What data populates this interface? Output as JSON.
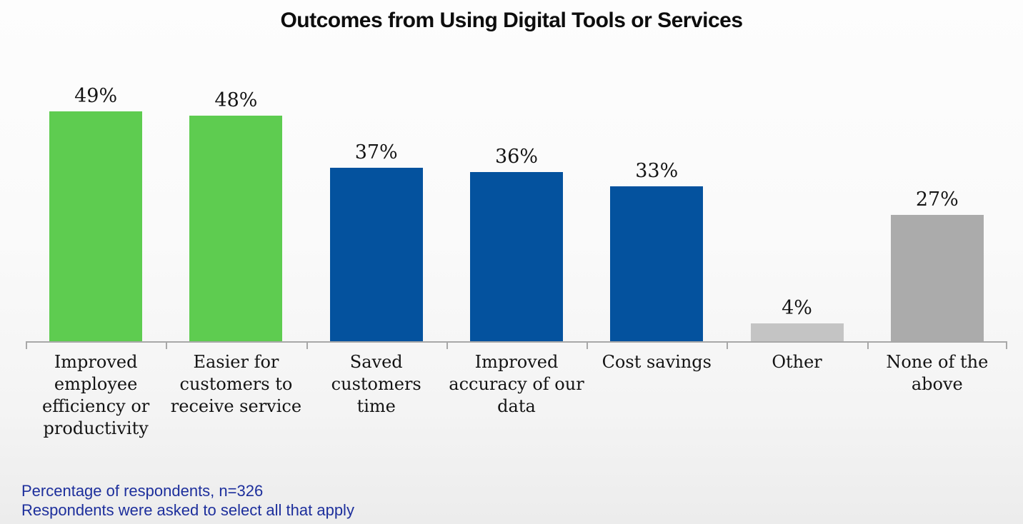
{
  "title": "Outcomes from Using Digital Tools or Services",
  "footer": {
    "line1": "Percentage of respondents, n=326",
    "line2": "Respondents were asked to select all that apply"
  },
  "colors": {
    "green": "#5ECC50",
    "blue": "#04529E",
    "light_gray": "#C4C4C4",
    "gray": "#ABABAB",
    "axis": "#A8A8A8",
    "footer_text": "#1D2F9C",
    "label_text": "#141414"
  },
  "chart_data": {
    "type": "bar",
    "title": "Outcomes from Using Digital Tools or Services",
    "categories": [
      "Improved employee efficiency or productivity",
      "Easier for customers to receive service",
      "Saved customers time",
      "Improved accuracy of our data",
      "Cost savings",
      "Other",
      "None of the above"
    ],
    "category_lines": [
      "Improved\nemployee\nefficiency or\nproductivity",
      "Easier for\ncustomers to\nreceive service",
      "Saved customers\ntime",
      "Improved\naccuracy of our\ndata",
      "Cost savings",
      "Other",
      "None of the\nabove"
    ],
    "values": [
      49,
      48,
      37,
      36,
      33,
      4,
      27
    ],
    "data_labels": [
      "49%",
      "48%",
      "37%",
      "36%",
      "33%",
      "4%",
      "27%"
    ],
    "bar_colors": [
      "#5ECC50",
      "#5ECC50",
      "#04529E",
      "#04529E",
      "#04529E",
      "#C4C4C4",
      "#ABABAB"
    ],
    "unit": "percent",
    "sample_size": 326,
    "ylim": [
      0,
      52
    ],
    "grid": false,
    "legend": false,
    "xlabel": "",
    "ylabel": "Percentage of respondents"
  }
}
